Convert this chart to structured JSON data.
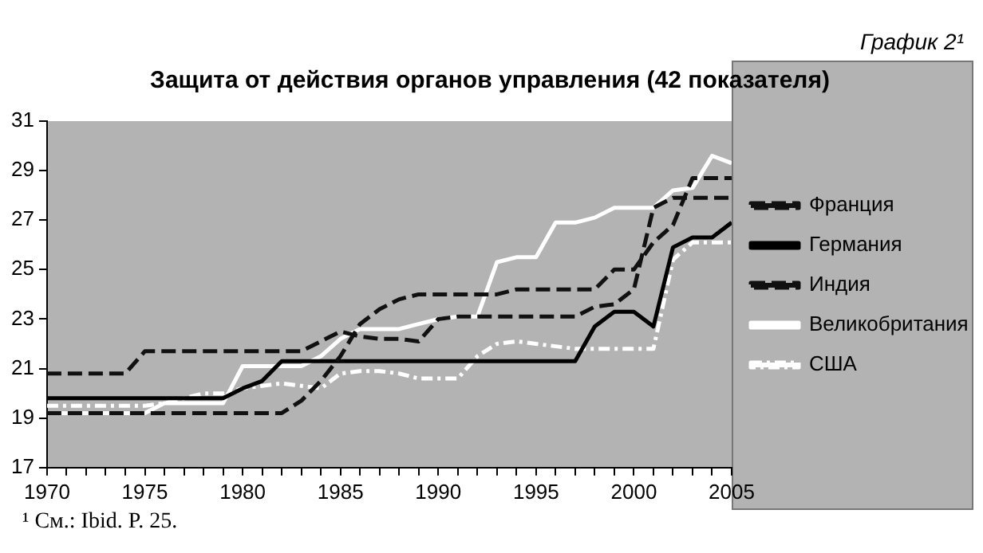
{
  "chart_data": {
    "type": "line",
    "title": "Защита от действия органов управления (42 показателя)",
    "annotations": [
      "График 2¹",
      "¹ См.: Ibid. P. 25."
    ],
    "x": [
      1970,
      1971,
      1972,
      1973,
      1974,
      1975,
      1976,
      1977,
      1978,
      1979,
      1980,
      1981,
      1982,
      1983,
      1984,
      1985,
      1986,
      1987,
      1988,
      1989,
      1990,
      1991,
      1992,
      1993,
      1994,
      1995,
      1996,
      1997,
      1998,
      1999,
      2000,
      2001,
      2002,
      2003,
      2004,
      2005
    ],
    "series": [
      {
        "name": "Франция",
        "color": "#111111",
        "line_style": "dashed",
        "values": [
          19.2,
          19.2,
          19.2,
          19.2,
          19.2,
          19.2,
          19.2,
          19.2,
          19.2,
          19.2,
          19.2,
          19.2,
          19.2,
          19.7,
          20.5,
          21.5,
          22.8,
          23.4,
          23.8,
          24,
          24,
          24,
          24,
          24,
          24.2,
          24.2,
          24.2,
          24.2,
          24.2,
          25,
          25,
          26.1,
          26.8,
          28.7,
          28.7,
          28.7
        ]
      },
      {
        "name": "Германия",
        "color": "#000000",
        "line_style": "solid",
        "values": [
          19.8,
          19.8,
          19.8,
          19.8,
          19.8,
          19.8,
          19.8,
          19.8,
          19.8,
          19.8,
          20.2,
          20.5,
          21.3,
          21.3,
          21.3,
          21.3,
          21.3,
          21.3,
          21.3,
          21.3,
          21.3,
          21.3,
          21.3,
          21.3,
          21.3,
          21.3,
          21.3,
          21.3,
          22.7,
          23.3,
          23.3,
          22.7,
          25.9,
          26.3,
          26.3,
          26.9
        ]
      },
      {
        "name": "Индия",
        "color": "#111111",
        "line_style": "dashed",
        "values": [
          20.8,
          20.8,
          20.8,
          20.8,
          20.8,
          21.7,
          21.7,
          21.7,
          21.7,
          21.7,
          21.7,
          21.7,
          21.7,
          21.7,
          22.1,
          22.5,
          22.3,
          22.2,
          22.2,
          22.1,
          23,
          23.1,
          23.1,
          23.1,
          23.1,
          23.1,
          23.1,
          23.1,
          23.5,
          23.6,
          24.2,
          27.5,
          27.9,
          27.9,
          27.9,
          27.9
        ]
      },
      {
        "name": "Великобритания",
        "color": "#ffffff",
        "line_style": "solid",
        "values": [
          19.2,
          19.2,
          19.2,
          19.2,
          19.2,
          19.2,
          19.6,
          19.6,
          19.6,
          19.6,
          21.1,
          21.1,
          21.1,
          21.1,
          21.5,
          22.2,
          22.6,
          22.6,
          22.6,
          22.8,
          23,
          23.1,
          23.1,
          25.3,
          25.5,
          25.5,
          26.9,
          26.9,
          27.1,
          27.5,
          27.5,
          27.5,
          28.2,
          28.3,
          29.6,
          29.3
        ]
      },
      {
        "name": "США",
        "color": "#ffffff",
        "line_style": "dotted",
        "values": [
          19.5,
          19.5,
          19.5,
          19.5,
          19.5,
          19.5,
          19.6,
          19.8,
          20,
          20,
          20.2,
          20.3,
          20.4,
          20.3,
          20.2,
          20.8,
          20.9,
          20.9,
          20.8,
          20.6,
          20.6,
          20.6,
          21.5,
          22,
          22.1,
          22,
          21.9,
          21.8,
          21.8,
          21.8,
          21.8,
          21.8,
          25.4,
          26.1,
          26.1,
          26.1
        ]
      }
    ],
    "xlim": [
      1970,
      2005
    ],
    "xticks": [
      1970,
      {
        "value": 1971,
        "label": null
      },
      {
        "value": 1972,
        "label": null
      },
      {
        "value": 1973,
        "label": null
      },
      {
        "value": 1974,
        "label": null
      },
      1975,
      {
        "value": 1976,
        "label": null
      },
      {
        "value": 1977,
        "label": null
      },
      {
        "value": 1978,
        "label": null
      },
      {
        "value": 1979,
        "label": null
      },
      1980,
      {
        "value": 1981,
        "label": null
      },
      {
        "value": 1982,
        "label": null
      },
      {
        "value": 1983,
        "label": null
      },
      {
        "value": 1984,
        "label": null
      },
      1985,
      {
        "value": 1986,
        "label": null
      },
      {
        "value": 1987,
        "label": null
      },
      {
        "value": 1988,
        "label": null
      },
      {
        "value": 1989,
        "label": null
      },
      1990,
      {
        "value": 1991,
        "label": null
      },
      {
        "value": 1992,
        "label": null
      },
      {
        "value": 1993,
        "label": null
      },
      {
        "value": 1994,
        "label": null
      },
      1995,
      {
        "value": 1996,
        "label": null
      },
      {
        "value": 1997,
        "label": null
      },
      {
        "value": 1998,
        "label": null
      },
      {
        "value": 1999,
        "label": null
      },
      2000,
      {
        "value": 2001,
        "label": null
      },
      {
        "value": 2002,
        "label": null
      },
      {
        "value": 2003,
        "label": null
      },
      {
        "value": 2004,
        "label": null
      },
      2005
    ],
    "ylim": [
      17,
      31
    ],
    "yticks": [
      17,
      19,
      21,
      23,
      25,
      27,
      29,
      31
    ],
    "grid": false,
    "legend": "right",
    "marker": "none"
  }
}
